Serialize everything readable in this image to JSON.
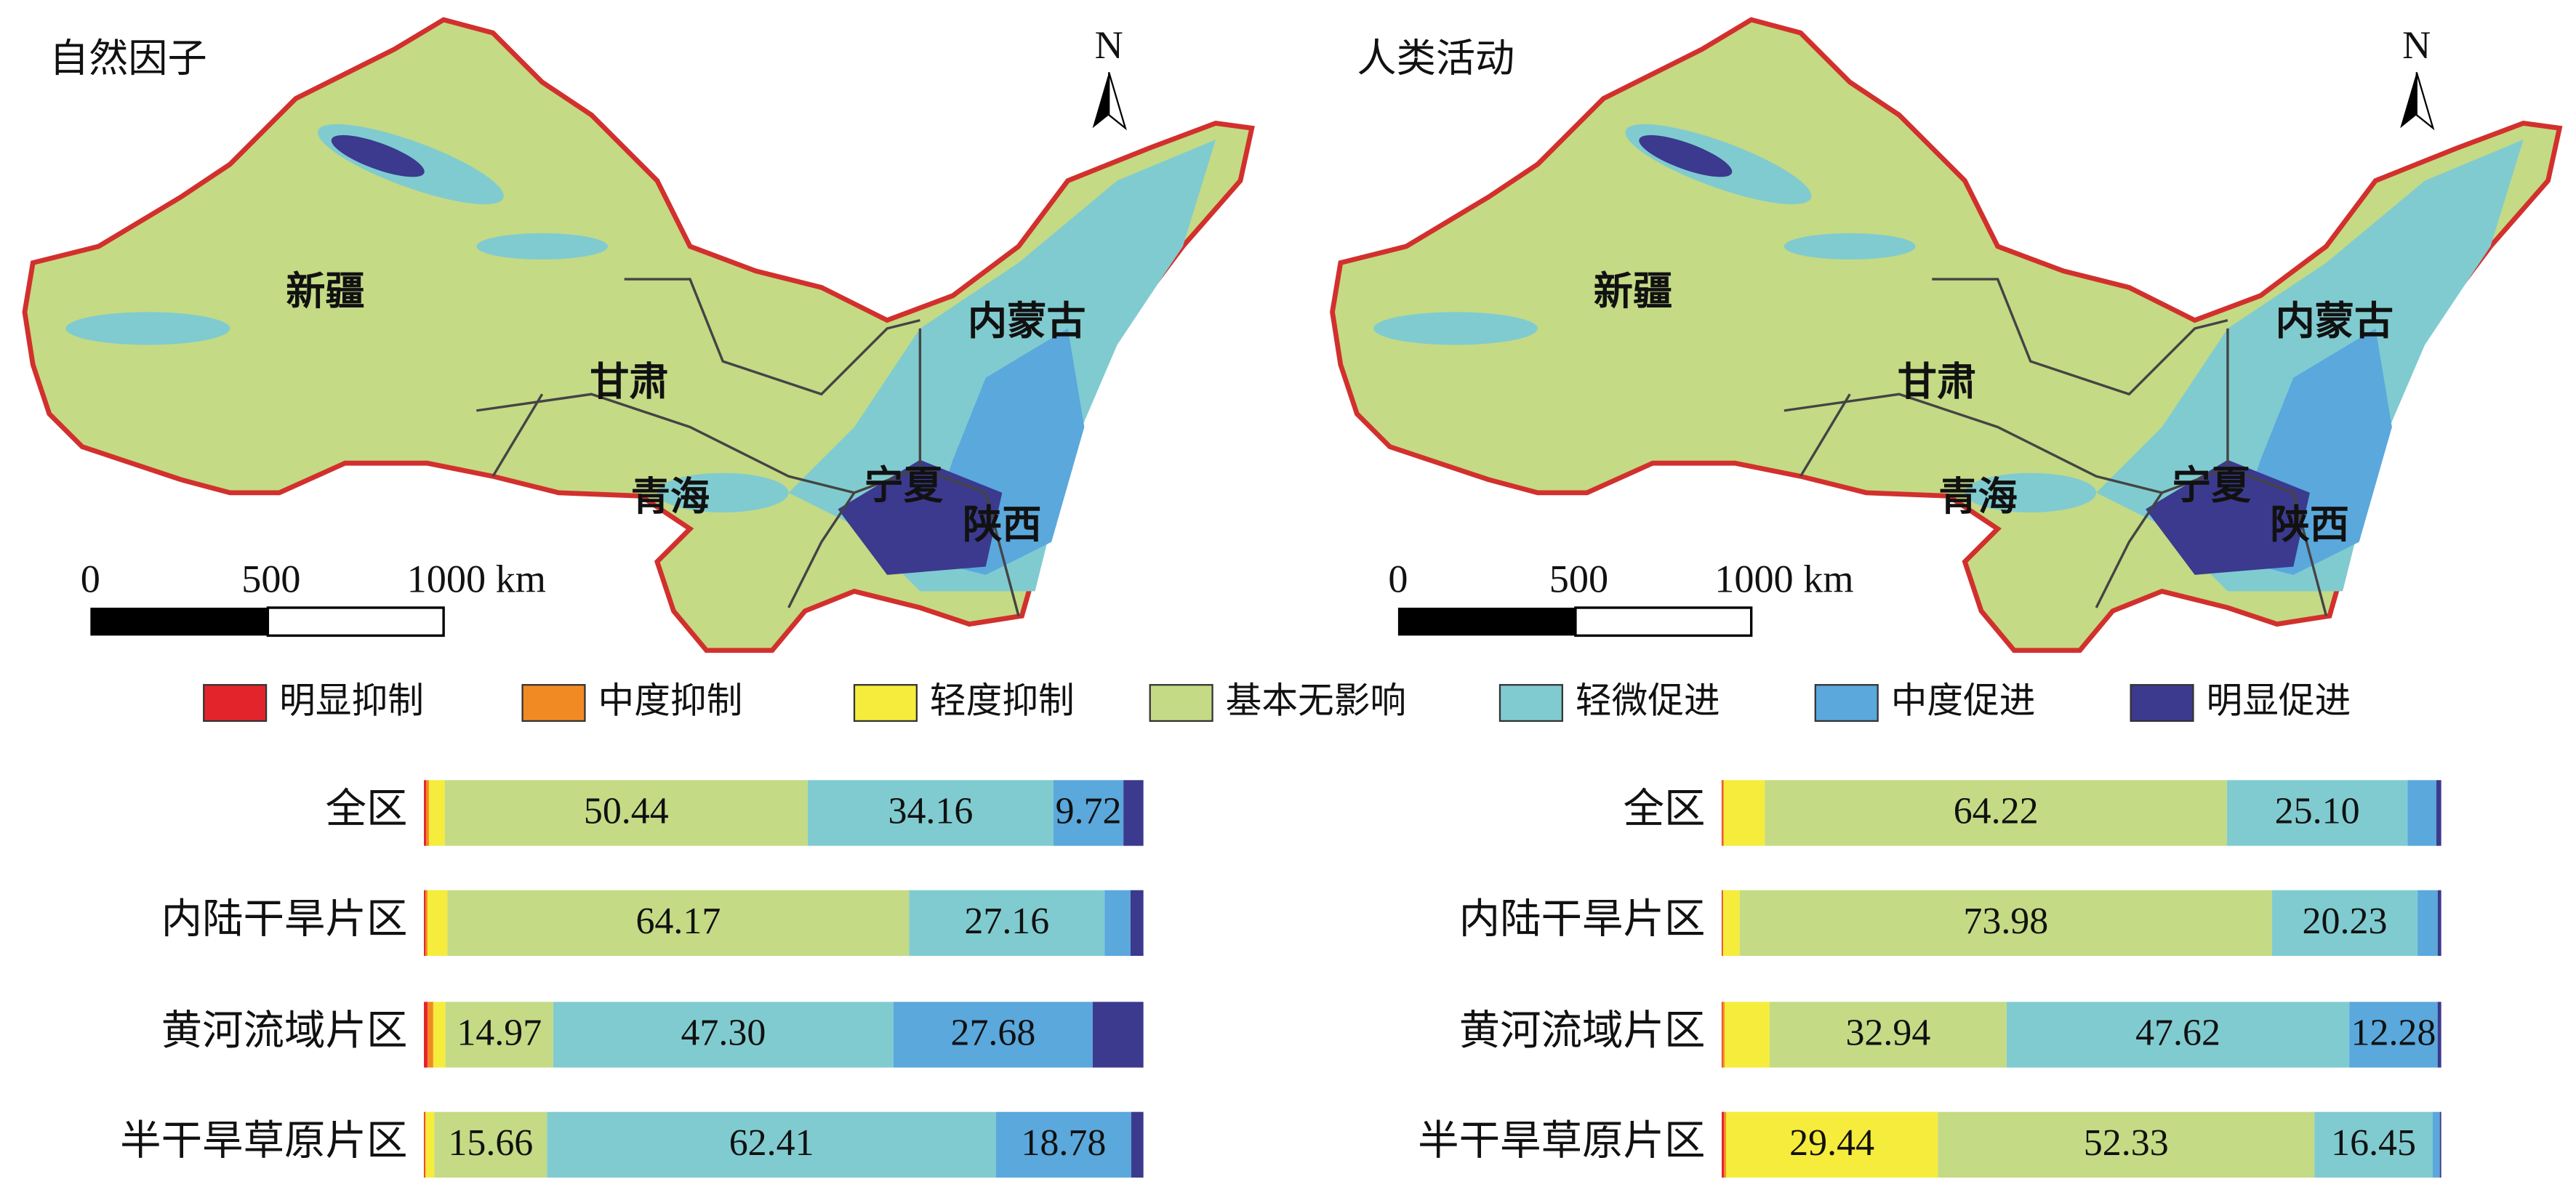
{
  "maps": [
    {
      "title": "自然因子",
      "labels": [
        "新疆",
        "内蒙古",
        "甘肃",
        "青海",
        "宁夏",
        "陕西"
      ],
      "north": "N",
      "scale_labels": [
        "0",
        "500",
        "1000 km"
      ]
    },
    {
      "title": "人类活动",
      "labels": [
        "新疆",
        "内蒙古",
        "甘肃",
        "青海",
        "宁夏",
        "陕西"
      ],
      "north": "N",
      "scale_labels": [
        "0",
        "500",
        "1000 km"
      ]
    }
  ],
  "chart_data": [
    {
      "type": "bar",
      "orientation": "horizontal",
      "stacked": true,
      "categories": [
        "全区",
        "内陆干旱片区",
        "黄河流域片区",
        "半干旱草原片区"
      ],
      "xlim": [
        0,
        100
      ],
      "series": [
        {
          "name": "明显抑制",
          "color": "#e3252b",
          "values": [
            0.3,
            0.2,
            0.5,
            0.1
          ],
          "value_labels": [
            null,
            null,
            null,
            null
          ]
        },
        {
          "name": "中度抑制",
          "color": "#f28a24",
          "values": [
            0.4,
            0.3,
            0.8,
            0.15
          ],
          "value_labels": [
            null,
            null,
            null,
            null
          ]
        },
        {
          "name": "轻度抑制",
          "color": "#f6ec3c",
          "values": [
            2.2,
            2.77,
            1.7,
            1.2
          ],
          "value_labels": [
            null,
            null,
            null,
            null
          ]
        },
        {
          "name": "基本无影响",
          "color": "#c4da85",
          "values": [
            50.44,
            64.17,
            14.97,
            15.66
          ],
          "value_labels": [
            "50.44",
            "64.17",
            "14.97",
            "15.66"
          ]
        },
        {
          "name": "轻微促进",
          "color": "#80cbd0",
          "values": [
            34.16,
            27.16,
            47.3,
            62.41
          ],
          "value_labels": [
            "34.16",
            "27.16",
            "47.30",
            "62.41"
          ]
        },
        {
          "name": "中度促进",
          "color": "#5aa8dc",
          "values": [
            9.72,
            3.6,
            27.68,
            18.78
          ],
          "value_labels": [
            "9.72",
            null,
            "27.68",
            "18.78"
          ]
        },
        {
          "name": "明显促进",
          "color": "#3b3a8e",
          "values": [
            2.78,
            1.8,
            7.05,
            1.7
          ],
          "value_labels": [
            null,
            null,
            null,
            null
          ]
        }
      ]
    },
    {
      "type": "bar",
      "orientation": "horizontal",
      "stacked": true,
      "categories": [
        "全区",
        "内陆干旱片区",
        "黄河流域片区",
        "半干旱草原片区"
      ],
      "xlim": [
        0,
        100
      ],
      "series": [
        {
          "name": "明显抑制",
          "color": "#e3252b",
          "values": [
            0.1,
            0.1,
            0.1,
            0.3
          ],
          "value_labels": [
            null,
            null,
            null,
            null
          ]
        },
        {
          "name": "中度抑制",
          "color": "#f28a24",
          "values": [
            0.2,
            0.1,
            0.3,
            0.3
          ],
          "value_labels": [
            null,
            null,
            null,
            null
          ]
        },
        {
          "name": "轻度抑制",
          "color": "#f6ec3c",
          "values": [
            5.7,
            2.3,
            6.26,
            29.44
          ],
          "value_labels": [
            null,
            null,
            null,
            "29.44"
          ]
        },
        {
          "name": "基本无影响",
          "color": "#c4da85",
          "values": [
            64.22,
            73.98,
            32.94,
            52.33
          ],
          "value_labels": [
            "64.22",
            "73.98",
            "32.94",
            "52.33"
          ]
        },
        {
          "name": "轻微促进",
          "color": "#80cbd0",
          "values": [
            25.1,
            20.23,
            47.62,
            16.45
          ],
          "value_labels": [
            "25.10",
            "20.23",
            "47.62",
            "16.45"
          ]
        },
        {
          "name": "中度促进",
          "color": "#5aa8dc",
          "values": [
            4,
            2.8,
            12.28,
            0.98
          ],
          "value_labels": [
            null,
            null,
            "12.28",
            null
          ]
        },
        {
          "name": "明显促进",
          "color": "#3b3a8e",
          "values": [
            0.68,
            0.49,
            0.5,
            0.2
          ],
          "value_labels": [
            null,
            null,
            null,
            null
          ]
        }
      ]
    }
  ]
}
